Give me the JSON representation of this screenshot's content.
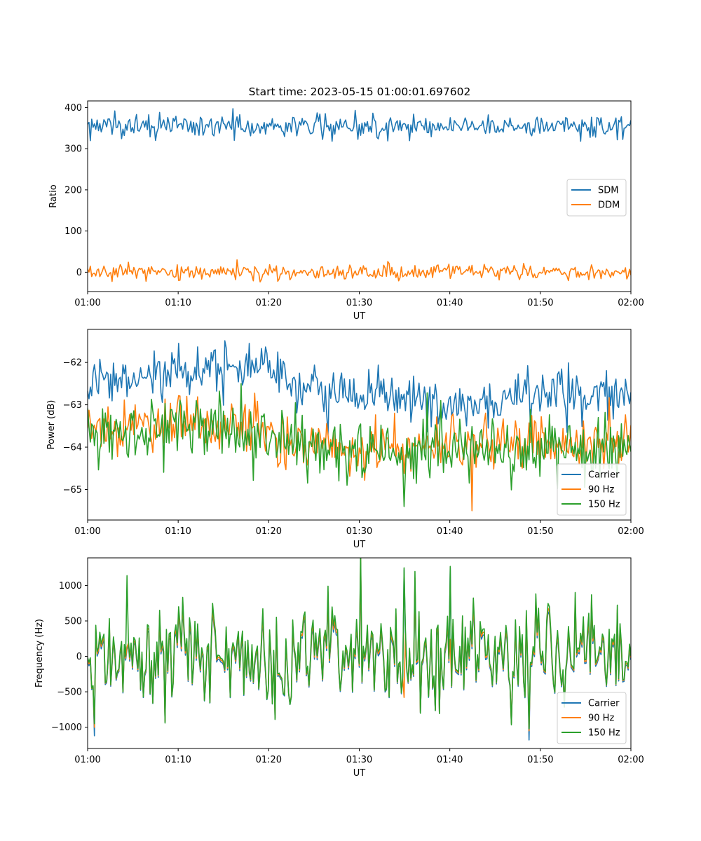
{
  "figure": {
    "title": "Start time: 2023-05-15 01:00:01.697602"
  },
  "chart_data": [
    {
      "type": "line",
      "title": "Start time: 2023-05-15 01:00:01.697602",
      "xlabel": "UT",
      "ylabel": "Ratio",
      "x_range": [
        "01:00",
        "02:00"
      ],
      "xticks": [
        "01:00",
        "01:10",
        "01:20",
        "01:30",
        "01:40",
        "01:50",
        "02:00"
      ],
      "ylim": [
        -47,
        416
      ],
      "yticks": [
        0,
        100,
        200,
        300,
        400
      ],
      "ytick_labels": [
        "0",
        "100",
        "200",
        "300",
        "400"
      ],
      "legend_loc": "center-right",
      "points_per_series": 400,
      "series": [
        {
          "name": "SDM",
          "color": "#1f77b4",
          "mean": 355,
          "amplitude": 14,
          "extremes": [
            [
              8,
              388
            ],
            [
              27,
              395
            ],
            [
              29.5,
              393
            ],
            [
              7.5,
              320
            ],
            [
              27,
              318
            ],
            [
              54.5,
              318
            ]
          ]
        },
        {
          "name": "DDM",
          "color": "#ff7f0e",
          "mean": 0,
          "amplitude": 9,
          "extremes": [
            [
              16.5,
              30
            ],
            [
              6.5,
              -22
            ],
            [
              10,
              -20
            ]
          ]
        }
      ]
    },
    {
      "type": "line",
      "xlabel": "UT",
      "ylabel": "Power (dB)",
      "x_range": [
        "01:00",
        "02:00"
      ],
      "xticks": [
        "01:00",
        "01:10",
        "01:20",
        "01:30",
        "01:40",
        "01:50",
        "02:00"
      ],
      "ylim": [
        -65.72,
        -61.22
      ],
      "yticks": [
        -65,
        -64,
        -63,
        -62
      ],
      "ytick_labels": [
        "−65",
        "−64",
        "−63",
        "−62"
      ],
      "legend_loc": "lower-right",
      "points_per_series": 400,
      "series": [
        {
          "name": "Carrier",
          "color": "#1f77b4",
          "trend": [
            [
              0,
              -62.55
            ],
            [
              10,
              -62.3
            ],
            [
              17,
              -62.2
            ],
            [
              25,
              -62.6
            ],
            [
              35,
              -62.8
            ],
            [
              42,
              -63.2
            ],
            [
              48,
              -62.8
            ],
            [
              60,
              -62.7
            ]
          ],
          "amplitude": 0.28,
          "extremes": [
            [
              10,
              -61.55
            ],
            [
              17.8,
              -61.55
            ],
            [
              26.5,
              -63.7
            ]
          ]
        },
        {
          "name": "90 Hz",
          "color": "#ff7f0e",
          "trend": [
            [
              0,
              -63.6
            ],
            [
              10,
              -63.4
            ],
            [
              20,
              -63.7
            ],
            [
              30,
              -64.05
            ],
            [
              40,
              -63.95
            ],
            [
              50,
              -63.85
            ],
            [
              60,
              -63.9
            ]
          ],
          "amplitude": 0.32,
          "extremes": [
            [
              42.5,
              -65.5
            ],
            [
              11,
              -62.8
            ]
          ]
        },
        {
          "name": "150 Hz",
          "color": "#2ca02c",
          "trend": [
            [
              0,
              -63.8
            ],
            [
              10,
              -63.5
            ],
            [
              20,
              -63.7
            ],
            [
              30,
              -64.1
            ],
            [
              40,
              -64.05
            ],
            [
              50,
              -64.05
            ],
            [
              60,
              -64.0
            ]
          ],
          "amplitude": 0.38,
          "extremes": [
            [
              35,
              -65.4
            ],
            [
              17,
              -62.5
            ],
            [
              39,
              -62.9
            ]
          ]
        }
      ]
    },
    {
      "type": "line",
      "xlabel": "UT",
      "ylabel": "Frequency (Hz)",
      "x_range": [
        "01:00",
        "02:00"
      ],
      "xticks": [
        "01:00",
        "01:10",
        "01:20",
        "01:30",
        "01:40",
        "01:50",
        "02:00"
      ],
      "ylim": [
        -1300,
        1390
      ],
      "yticks": [
        -1000,
        -500,
        0,
        500,
        1000
      ],
      "ytick_labels": [
        "−1000",
        "−500",
        "0",
        "500",
        "1000"
      ],
      "legend_loc": "lower-right",
      "points_per_series": 400,
      "series": [
        {
          "name": "Carrier",
          "color": "#1f77b4",
          "mean": 0,
          "amplitude": 350,
          "extremes": [
            [
              0.7,
              -1120
            ],
            [
              48.8,
              -1180
            ],
            [
              40,
              1240
            ],
            [
              35,
              1220
            ]
          ]
        },
        {
          "name": "90 Hz",
          "color": "#ff7f0e",
          "mean": 30,
          "amplitude": 360,
          "extremes": [
            [
              0.7,
              -1000
            ],
            [
              48.8,
              -1050
            ]
          ]
        },
        {
          "name": "150 Hz",
          "color": "#2ca02c",
          "mean": 60,
          "amplitude": 380,
          "extremes": [
            [
              4.3,
              1140
            ],
            [
              35,
              1250
            ],
            [
              40,
              1270
            ],
            [
              0.7,
              -950
            ],
            [
              48.8,
              -1020
            ]
          ]
        }
      ]
    }
  ]
}
